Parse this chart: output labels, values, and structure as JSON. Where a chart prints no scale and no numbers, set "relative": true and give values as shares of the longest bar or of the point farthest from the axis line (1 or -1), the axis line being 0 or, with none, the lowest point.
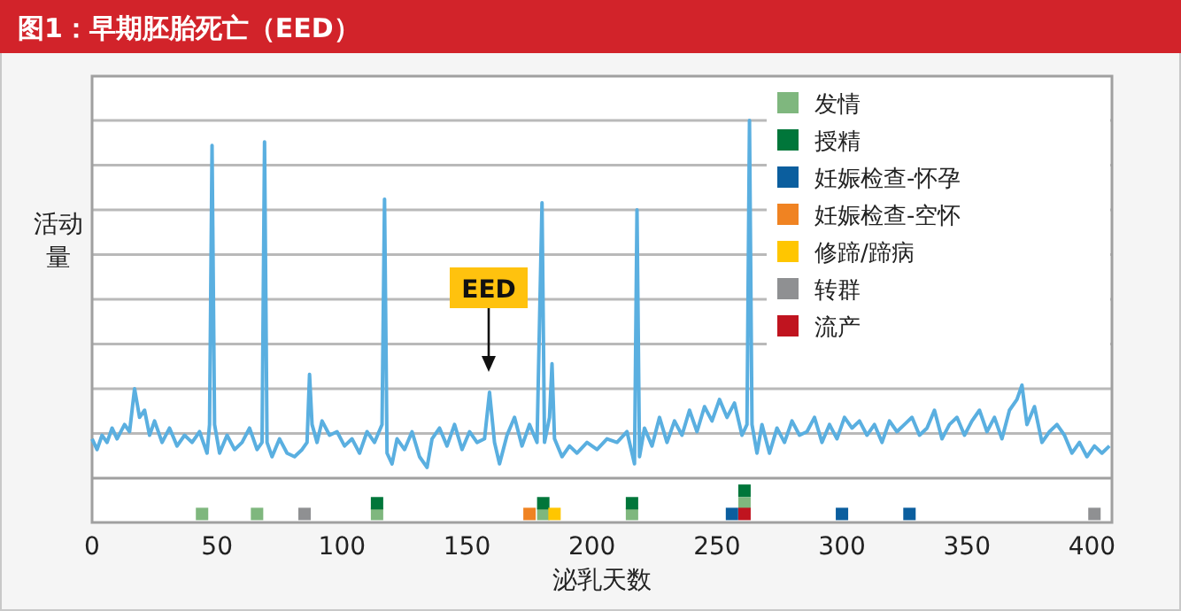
{
  "chart_data": {
    "type": "line",
    "title": "图1：早期胚胎死亡（EED）",
    "xlabel": "泌乳天数",
    "ylabel": "活动量",
    "relative": true,
    "grid": true,
    "legend": "top right",
    "xlim": [
      0,
      408
    ],
    "xticks": [
      0,
      50,
      100,
      150,
      200,
      250,
      300,
      350,
      400
    ],
    "annotations": [
      "EED"
    ],
    "series": [
      {
        "color": "#5aafe0",
        "marker": "none",
        "x": [
          0,
          2,
          4,
          6,
          8,
          10,
          13,
          15,
          17,
          19,
          21,
          23,
          25,
          28,
          31,
          34,
          37,
          40,
          43,
          46,
          47,
          48,
          49,
          51,
          54,
          57,
          60,
          63,
          66,
          68,
          69,
          70,
          72,
          75,
          78,
          81,
          84,
          86,
          87,
          88,
          90,
          92,
          95,
          98,
          101,
          104,
          107,
          110,
          113,
          116,
          117,
          118,
          120,
          122,
          125,
          128,
          131,
          134,
          136,
          139,
          142,
          145,
          148,
          151,
          154,
          157,
          159,
          161,
          163,
          166,
          169,
          172,
          175,
          178,
          180,
          181,
          183,
          184,
          185,
          188,
          191,
          194,
          198,
          202,
          206,
          210,
          214,
          217,
          218,
          219,
          221,
          224,
          227,
          230,
          233,
          236,
          239,
          242,
          245,
          248,
          251,
          254,
          257,
          260,
          262,
          263,
          264,
          266,
          268,
          271,
          274,
          277,
          280,
          283,
          286,
          289,
          292,
          295,
          298,
          301,
          304,
          307,
          310,
          313,
          316,
          319,
          322,
          325,
          328,
          331,
          334,
          337,
          340,
          343,
          346,
          349,
          352,
          355,
          358,
          361,
          364,
          367,
          370,
          372,
          374,
          377,
          380,
          383,
          386,
          389,
          392,
          395,
          398,
          401,
          404,
          407
        ],
        "values": [
          0.11,
          0.08,
          0.12,
          0.1,
          0.14,
          0.11,
          0.15,
          0.13,
          0.25,
          0.17,
          0.19,
          0.12,
          0.16,
          0.1,
          0.14,
          0.09,
          0.12,
          0.1,
          0.13,
          0.07,
          0.15,
          0.93,
          0.15,
          0.07,
          0.12,
          0.08,
          0.1,
          0.14,
          0.08,
          0.1,
          0.94,
          0.1,
          0.06,
          0.11,
          0.07,
          0.06,
          0.08,
          0.1,
          0.29,
          0.15,
          0.1,
          0.16,
          0.12,
          0.13,
          0.09,
          0.11,
          0.07,
          0.13,
          0.1,
          0.15,
          0.78,
          0.07,
          0.04,
          0.11,
          0.08,
          0.13,
          0.06,
          0.03,
          0.11,
          0.14,
          0.09,
          0.15,
          0.08,
          0.13,
          0.1,
          0.11,
          0.24,
          0.1,
          0.04,
          0.12,
          0.17,
          0.09,
          0.15,
          0.1,
          0.77,
          0.1,
          0.17,
          0.32,
          0.11,
          0.06,
          0.09,
          0.07,
          0.1,
          0.08,
          0.11,
          0.1,
          0.13,
          0.04,
          0.75,
          0.06,
          0.14,
          0.09,
          0.17,
          0.1,
          0.16,
          0.12,
          0.19,
          0.13,
          0.2,
          0.16,
          0.22,
          0.17,
          0.21,
          0.12,
          0.15,
          1,
          0.15,
          0.07,
          0.15,
          0.07,
          0.14,
          0.1,
          0.16,
          0.12,
          0.13,
          0.17,
          0.1,
          0.15,
          0.11,
          0.17,
          0.14,
          0.16,
          0.12,
          0.15,
          0.1,
          0.16,
          0.13,
          0.15,
          0.17,
          0.12,
          0.14,
          0.19,
          0.11,
          0.15,
          0.17,
          0.12,
          0.16,
          0.19,
          0.13,
          0.17,
          0.11,
          0.19,
          0.22,
          0.26,
          0.15,
          0.2,
          0.1,
          0.13,
          0.15,
          0.12,
          0.07,
          0.1,
          0.06,
          0.09,
          0.07,
          0.09
        ]
      },
      {
        "type": "scatter",
        "name": "发情",
        "color": "#7fb77e",
        "marker": "square",
        "x": [
          44,
          66,
          114,
          180.5,
          216,
          261
        ],
        "values": [
          -0.1,
          -0.1,
          -0.1,
          -0.1,
          -0.1,
          -0.07
        ]
      },
      {
        "type": "scatter",
        "name": "授精",
        "color": "#00763a",
        "marker": "square",
        "x": [
          114,
          180.5,
          216,
          261
        ],
        "values": [
          -0.07,
          -0.07,
          -0.07,
          -0.035
        ]
      },
      {
        "type": "scatter",
        "name": "妊娠检查-怀孕",
        "color": "#0b5e9e",
        "marker": "square",
        "x": [
          256,
          300,
          327
        ],
        "values": [
          -0.1,
          -0.1,
          -0.1
        ]
      },
      {
        "type": "scatter",
        "name": "妊娠检查-空怀",
        "color": "#f08322",
        "marker": "square",
        "x": [
          175
        ],
        "values": [
          -0.1
        ]
      },
      {
        "type": "scatter",
        "name": "修蹄/蹄病",
        "color": "#ffc600",
        "marker": "square",
        "x": [
          185
        ],
        "values": [
          -0.1
        ]
      },
      {
        "type": "scatter",
        "name": "转群",
        "color": "#8f9092",
        "marker": "square",
        "x": [
          85,
          401
        ],
        "values": [
          -0.1,
          -0.1
        ]
      },
      {
        "type": "scatter",
        "name": "流产",
        "color": "#c0141f",
        "marker": "square",
        "x": [
          261
        ],
        "values": [
          -0.1
        ]
      }
    ]
  }
}
